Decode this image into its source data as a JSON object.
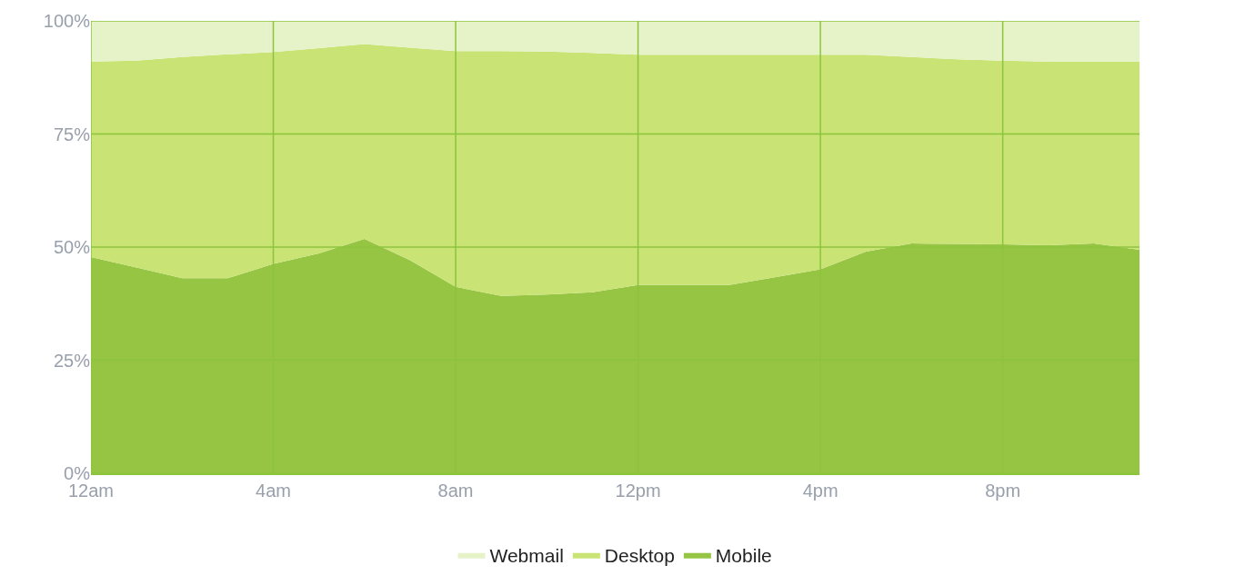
{
  "chart_data": {
    "type": "area",
    "stacked": true,
    "categories": [
      "12am",
      null,
      null,
      null,
      "4am",
      null,
      null,
      null,
      "8am",
      null,
      null,
      null,
      "12pm",
      null,
      null,
      null,
      "4pm",
      null,
      null,
      null,
      "8pm",
      null,
      null,
      null
    ],
    "series": [
      {
        "name": "Mobile",
        "color": "#96c443",
        "values": [
          47.8,
          45.5,
          43.1,
          43.1,
          46.3,
          48.6,
          51.8,
          47.1,
          41.2,
          39.2,
          39.5,
          40.0,
          41.6,
          41.6,
          41.6,
          43.3,
          45.1,
          49.0,
          50.8,
          50.7,
          50.6,
          50.4,
          50.8,
          49.4
        ]
      },
      {
        "name": "Desktop",
        "color": "#c9e374",
        "values": [
          43.2,
          45.7,
          48.9,
          49.5,
          46.8,
          45.4,
          43.1,
          47.0,
          52.1,
          54.1,
          53.7,
          52.9,
          50.9,
          50.9,
          50.9,
          49.2,
          47.4,
          43.5,
          41.2,
          40.8,
          40.6,
          40.6,
          40.2,
          41.6
        ]
      },
      {
        "name": "Webmail",
        "color": "#e6f3c8",
        "values": [
          9.0,
          8.8,
          8.0,
          7.4,
          6.9,
          6.0,
          5.1,
          5.9,
          6.7,
          6.7,
          6.8,
          7.1,
          7.5,
          7.5,
          7.5,
          7.5,
          7.5,
          7.5,
          8.0,
          8.5,
          8.8,
          9.0,
          9.0,
          9.0
        ]
      }
    ],
    "ylim": [
      0,
      100
    ],
    "yticks": [
      {
        "value": 0,
        "label": "0%"
      },
      {
        "value": 25,
        "label": "25%"
      },
      {
        "value": 50,
        "label": "50%"
      },
      {
        "value": 75,
        "label": "75%"
      },
      {
        "value": 100,
        "label": "100%"
      }
    ],
    "grid": true,
    "legend": "bottom"
  }
}
